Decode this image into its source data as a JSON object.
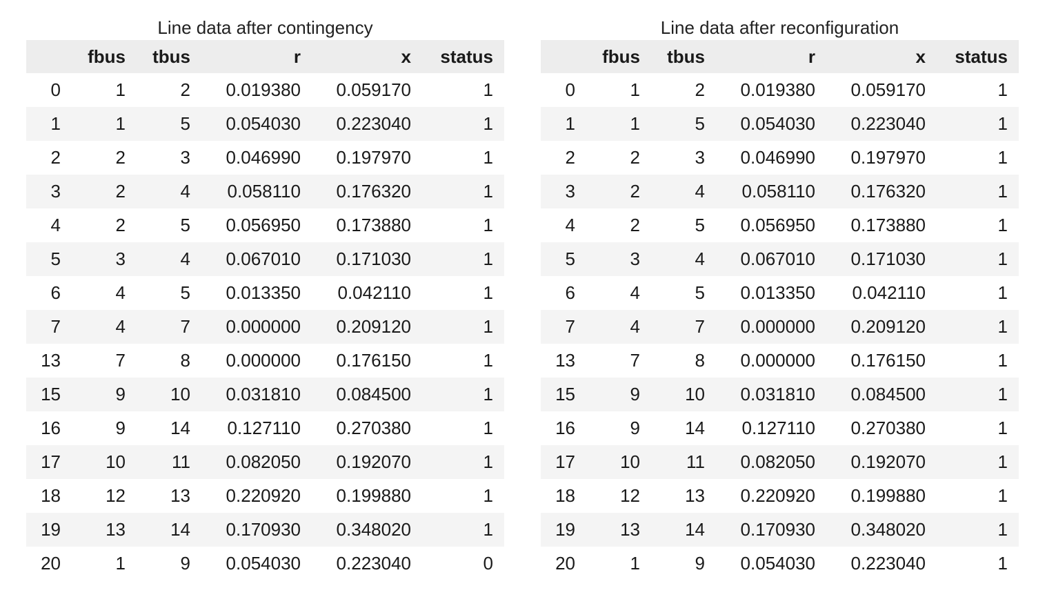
{
  "tables": [
    {
      "caption": "Line data after contingency",
      "columns": [
        "",
        "fbus",
        "tbus",
        "r",
        "x",
        "status"
      ],
      "rows": [
        [
          "0",
          "1",
          "2",
          "0.019380",
          "0.059170",
          "1"
        ],
        [
          "1",
          "1",
          "5",
          "0.054030",
          "0.223040",
          "1"
        ],
        [
          "2",
          "2",
          "3",
          "0.046990",
          "0.197970",
          "1"
        ],
        [
          "3",
          "2",
          "4",
          "0.058110",
          "0.176320",
          "1"
        ],
        [
          "4",
          "2",
          "5",
          "0.056950",
          "0.173880",
          "1"
        ],
        [
          "5",
          "3",
          "4",
          "0.067010",
          "0.171030",
          "1"
        ],
        [
          "6",
          "4",
          "5",
          "0.013350",
          "0.042110",
          "1"
        ],
        [
          "7",
          "4",
          "7",
          "0.000000",
          "0.209120",
          "1"
        ],
        [
          "13",
          "7",
          "8",
          "0.000000",
          "0.176150",
          "1"
        ],
        [
          "15",
          "9",
          "10",
          "0.031810",
          "0.084500",
          "1"
        ],
        [
          "16",
          "9",
          "14",
          "0.127110",
          "0.270380",
          "1"
        ],
        [
          "17",
          "10",
          "11",
          "0.082050",
          "0.192070",
          "1"
        ],
        [
          "18",
          "12",
          "13",
          "0.220920",
          "0.199880",
          "1"
        ],
        [
          "19",
          "13",
          "14",
          "0.170930",
          "0.348020",
          "1"
        ],
        [
          "20",
          "1",
          "9",
          "0.054030",
          "0.223040",
          "0"
        ]
      ]
    },
    {
      "caption": "Line data after reconfiguration",
      "columns": [
        "",
        "fbus",
        "tbus",
        "r",
        "x",
        "status"
      ],
      "rows": [
        [
          "0",
          "1",
          "2",
          "0.019380",
          "0.059170",
          "1"
        ],
        [
          "1",
          "1",
          "5",
          "0.054030",
          "0.223040",
          "1"
        ],
        [
          "2",
          "2",
          "3",
          "0.046990",
          "0.197970",
          "1"
        ],
        [
          "3",
          "2",
          "4",
          "0.058110",
          "0.176320",
          "1"
        ],
        [
          "4",
          "2",
          "5",
          "0.056950",
          "0.173880",
          "1"
        ],
        [
          "5",
          "3",
          "4",
          "0.067010",
          "0.171030",
          "1"
        ],
        [
          "6",
          "4",
          "5",
          "0.013350",
          "0.042110",
          "1"
        ],
        [
          "7",
          "4",
          "7",
          "0.000000",
          "0.209120",
          "1"
        ],
        [
          "13",
          "7",
          "8",
          "0.000000",
          "0.176150",
          "1"
        ],
        [
          "15",
          "9",
          "10",
          "0.031810",
          "0.084500",
          "1"
        ],
        [
          "16",
          "9",
          "14",
          "0.127110",
          "0.270380",
          "1"
        ],
        [
          "17",
          "10",
          "11",
          "0.082050",
          "0.192070",
          "1"
        ],
        [
          "18",
          "12",
          "13",
          "0.220920",
          "0.199880",
          "1"
        ],
        [
          "19",
          "13",
          "14",
          "0.170930",
          "0.348020",
          "1"
        ],
        [
          "20",
          "1",
          "9",
          "0.054030",
          "0.223040",
          "1"
        ]
      ]
    }
  ]
}
